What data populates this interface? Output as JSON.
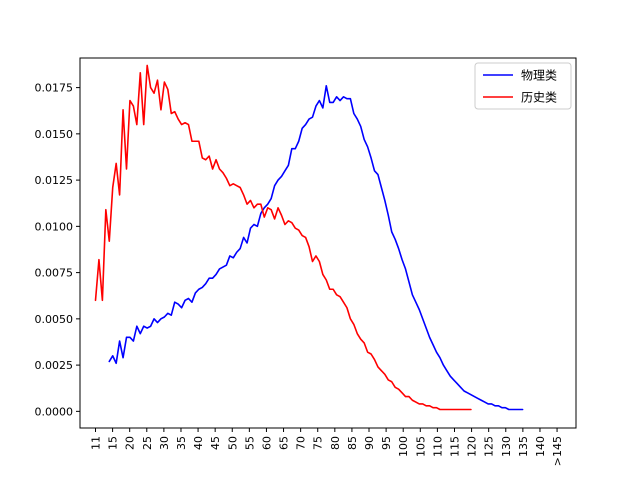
{
  "chart_data": {
    "type": "line",
    "title": "",
    "xlabel": "",
    "ylabel": "",
    "ylim": [
      -0.0009,
      0.0191
    ],
    "legend_position": "top-right",
    "grid": false,
    "x_tick_labels": [
      "11",
      "15",
      "20",
      "25",
      "30",
      "35",
      "40",
      "45",
      "50",
      "55",
      "60",
      "65",
      "70",
      "75",
      "80",
      "85",
      "90",
      "95",
      "100",
      "105",
      "110",
      "115",
      "120",
      "125",
      "130",
      "135",
      "140",
      ">145"
    ],
    "y_ticks": [
      0.0,
      0.0025,
      0.005,
      0.0075,
      0.01,
      0.0125,
      0.015,
      0.0175
    ],
    "y_tick_labels": [
      "0.0000",
      "0.0025",
      "0.0050",
      "0.0075",
      "0.0100",
      "0.0125",
      "0.0150",
      "0.0175"
    ],
    "series": [
      {
        "name": "物理类",
        "color": "#0000ff",
        "points": [
          [
            15,
            0.0027
          ],
          [
            16,
            0.003
          ],
          [
            17,
            0.0026
          ],
          [
            18,
            0.0038
          ],
          [
            19,
            0.0029
          ],
          [
            20,
            0.004
          ],
          [
            21,
            0.004
          ],
          [
            22,
            0.0038
          ],
          [
            23,
            0.0046
          ],
          [
            24,
            0.0042
          ],
          [
            25,
            0.0046
          ],
          [
            26,
            0.0045
          ],
          [
            27,
            0.0046
          ],
          [
            28,
            0.005
          ],
          [
            29,
            0.0048
          ],
          [
            30,
            0.005
          ],
          [
            31,
            0.0051
          ],
          [
            32,
            0.0053
          ],
          [
            33,
            0.0052
          ],
          [
            34,
            0.0059
          ],
          [
            35,
            0.0058
          ],
          [
            36,
            0.0056
          ],
          [
            37,
            0.006
          ],
          [
            38,
            0.0061
          ],
          [
            39,
            0.0059
          ],
          [
            40,
            0.0064
          ],
          [
            41,
            0.0066
          ],
          [
            42,
            0.0067
          ],
          [
            43,
            0.0069
          ],
          [
            44,
            0.0072
          ],
          [
            45,
            0.0072
          ],
          [
            46,
            0.0074
          ],
          [
            47,
            0.0077
          ],
          [
            48,
            0.0078
          ],
          [
            49,
            0.0079
          ],
          [
            50,
            0.0084
          ],
          [
            51,
            0.0083
          ],
          [
            52,
            0.0086
          ],
          [
            53,
            0.0088
          ],
          [
            54,
            0.0094
          ],
          [
            55,
            0.0091
          ],
          [
            56,
            0.0099
          ],
          [
            57,
            0.0101
          ],
          [
            58,
            0.01
          ],
          [
            59,
            0.0107
          ],
          [
            60,
            0.011
          ],
          [
            61,
            0.0112
          ],
          [
            62,
            0.0115
          ],
          [
            63,
            0.0122
          ],
          [
            64,
            0.0125
          ],
          [
            65,
            0.0127
          ],
          [
            66,
            0.013
          ],
          [
            67,
            0.0133
          ],
          [
            68,
            0.0142
          ],
          [
            69,
            0.0142
          ],
          [
            70,
            0.0146
          ],
          [
            71,
            0.0153
          ],
          [
            72,
            0.0155
          ],
          [
            73,
            0.0158
          ],
          [
            74,
            0.0159
          ],
          [
            75,
            0.0165
          ],
          [
            76,
            0.0168
          ],
          [
            77,
            0.0164
          ],
          [
            78,
            0.0176
          ],
          [
            79,
            0.0167
          ],
          [
            80,
            0.0167
          ],
          [
            81,
            0.017
          ],
          [
            82,
            0.0168
          ],
          [
            83,
            0.017
          ],
          [
            84,
            0.0169
          ],
          [
            85,
            0.0169
          ],
          [
            86,
            0.0161
          ],
          [
            87,
            0.0158
          ],
          [
            88,
            0.0154
          ],
          [
            89,
            0.0147
          ],
          [
            90,
            0.0143
          ],
          [
            91,
            0.0137
          ],
          [
            92,
            0.013
          ],
          [
            93,
            0.0128
          ],
          [
            94,
            0.0121
          ],
          [
            95,
            0.0114
          ],
          [
            96,
            0.0106
          ],
          [
            97,
            0.0097
          ],
          [
            98,
            0.0093
          ],
          [
            99,
            0.0088
          ],
          [
            100,
            0.0082
          ],
          [
            101,
            0.0077
          ],
          [
            102,
            0.007
          ],
          [
            103,
            0.0063
          ],
          [
            104,
            0.0059
          ],
          [
            105,
            0.0055
          ],
          [
            106,
            0.005
          ],
          [
            107,
            0.0045
          ],
          [
            108,
            0.004
          ],
          [
            109,
            0.0036
          ],
          [
            110,
            0.0032
          ],
          [
            111,
            0.0029
          ],
          [
            112,
            0.0025
          ],
          [
            113,
            0.0022
          ],
          [
            114,
            0.0019
          ],
          [
            115,
            0.0017
          ],
          [
            116,
            0.0015
          ],
          [
            117,
            0.0013
          ],
          [
            118,
            0.0011
          ],
          [
            119,
            0.001
          ],
          [
            120,
            0.0009
          ],
          [
            121,
            0.0008
          ],
          [
            122,
            0.0007
          ],
          [
            123,
            0.0006
          ],
          [
            124,
            0.0005
          ],
          [
            125,
            0.0004
          ],
          [
            126,
            0.0004
          ],
          [
            127,
            0.0003
          ],
          [
            128,
            0.0003
          ],
          [
            129,
            0.0002
          ],
          [
            130,
            0.0002
          ],
          [
            131,
            0.0001
          ],
          [
            132,
            0.0001
          ],
          [
            133,
            0.0001
          ],
          [
            134,
            0.0001
          ],
          [
            135,
            0.0001
          ]
        ]
      },
      {
        "name": "历史类",
        "color": "#ff0000",
        "points": [
          [
            11,
            0.006
          ],
          [
            12,
            0.0082
          ],
          [
            13,
            0.006
          ],
          [
            14,
            0.0109
          ],
          [
            15,
            0.0092
          ],
          [
            16,
            0.0121
          ],
          [
            17,
            0.0134
          ],
          [
            18,
            0.0117
          ],
          [
            19,
            0.0163
          ],
          [
            20,
            0.0131
          ],
          [
            21,
            0.0168
          ],
          [
            22,
            0.0165
          ],
          [
            23,
            0.0155
          ],
          [
            24,
            0.0183
          ],
          [
            25,
            0.0155
          ],
          [
            26,
            0.0187
          ],
          [
            27,
            0.0175
          ],
          [
            28,
            0.0172
          ],
          [
            29,
            0.0179
          ],
          [
            30,
            0.0163
          ],
          [
            31,
            0.0178
          ],
          [
            32,
            0.0174
          ],
          [
            33,
            0.0161
          ],
          [
            34,
            0.0162
          ],
          [
            35,
            0.0158
          ],
          [
            36,
            0.0155
          ],
          [
            37,
            0.0156
          ],
          [
            38,
            0.0155
          ],
          [
            39,
            0.0146
          ],
          [
            40,
            0.0146
          ],
          [
            41,
            0.0146
          ],
          [
            42,
            0.0137
          ],
          [
            43,
            0.0136
          ],
          [
            44,
            0.0138
          ],
          [
            45,
            0.0131
          ],
          [
            46,
            0.0136
          ],
          [
            47,
            0.0131
          ],
          [
            48,
            0.0129
          ],
          [
            49,
            0.0126
          ],
          [
            50,
            0.0122
          ],
          [
            51,
            0.0123
          ],
          [
            52,
            0.0122
          ],
          [
            53,
            0.0121
          ],
          [
            54,
            0.0117
          ],
          [
            55,
            0.0112
          ],
          [
            56,
            0.0114
          ],
          [
            57,
            0.011
          ],
          [
            58,
            0.0112
          ],
          [
            59,
            0.0112
          ],
          [
            60,
            0.0105
          ],
          [
            61,
            0.011
          ],
          [
            62,
            0.0109
          ],
          [
            63,
            0.0104
          ],
          [
            64,
            0.011
          ],
          [
            65,
            0.0106
          ],
          [
            66,
            0.0101
          ],
          [
            67,
            0.0103
          ],
          [
            68,
            0.0102
          ],
          [
            69,
            0.0099
          ],
          [
            70,
            0.0098
          ],
          [
            71,
            0.0095
          ],
          [
            72,
            0.0094
          ],
          [
            73,
            0.0089
          ],
          [
            74,
            0.0081
          ],
          [
            75,
            0.0084
          ],
          [
            76,
            0.0081
          ],
          [
            77,
            0.0074
          ],
          [
            78,
            0.0071
          ],
          [
            79,
            0.0066
          ],
          [
            80,
            0.0066
          ],
          [
            81,
            0.0063
          ],
          [
            82,
            0.0062
          ],
          [
            83,
            0.0059
          ],
          [
            84,
            0.0056
          ],
          [
            85,
            0.005
          ],
          [
            86,
            0.0047
          ],
          [
            87,
            0.0042
          ],
          [
            88,
            0.0039
          ],
          [
            89,
            0.0037
          ],
          [
            90,
            0.0032
          ],
          [
            91,
            0.0031
          ],
          [
            92,
            0.0028
          ],
          [
            93,
            0.0024
          ],
          [
            94,
            0.0022
          ],
          [
            95,
            0.002
          ],
          [
            96,
            0.0017
          ],
          [
            97,
            0.0016
          ],
          [
            98,
            0.0013
          ],
          [
            99,
            0.0012
          ],
          [
            100,
            0.001
          ],
          [
            101,
            0.0008
          ],
          [
            102,
            0.0008
          ],
          [
            103,
            0.0006
          ],
          [
            104,
            0.0005
          ],
          [
            105,
            0.0004
          ],
          [
            106,
            0.0004
          ],
          [
            107,
            0.0003
          ],
          [
            108,
            0.0003
          ],
          [
            109,
            0.0002
          ],
          [
            110,
            0.0002
          ],
          [
            111,
            0.0001
          ],
          [
            112,
            0.0001
          ],
          [
            113,
            0.0001
          ],
          [
            114,
            0.0001
          ],
          [
            115,
            0.0001
          ],
          [
            116,
            0.0001
          ],
          [
            117,
            0.0001
          ],
          [
            118,
            0.0001
          ],
          [
            119,
            0.0001
          ],
          [
            120,
            0.0001
          ]
        ]
      }
    ]
  }
}
